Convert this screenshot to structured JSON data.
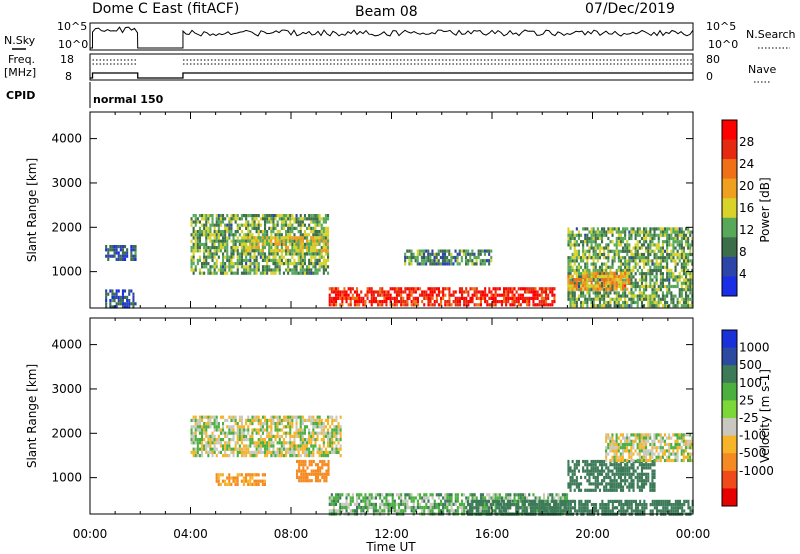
{
  "header": {
    "station": "Dome C East (fitACF)",
    "beam": "Beam 08",
    "date": "07/Dec/2019"
  },
  "summary_panels": {
    "nsky_label": "N.Sky",
    "nsky_ticks": [
      "10^5",
      "10^0"
    ],
    "nsearch_label": "N.Search",
    "nsearch_ticks": [
      "10^5",
      "10^0"
    ],
    "freq_label": "Freq.",
    "freq_unit": "[MHz]",
    "freq_ticks": [
      "18",
      "8"
    ],
    "nave_label": "Nave",
    "nave_ticks": [
      "80",
      "0"
    ],
    "cpid_label": "CPID",
    "cpid_value": "normal 150"
  },
  "colors": {
    "power": [
      "#1a2ee6",
      "#2b45a8",
      "#3c6e4a",
      "#58a85a",
      "#d8d22a",
      "#f0a020",
      "#f07018",
      "#e62a10",
      "#ff0000"
    ],
    "velocity": [
      "#e60000",
      "#f04a1a",
      "#f58a22",
      "#f8b428",
      "#c8c8c0",
      "#7cd838",
      "#4cb040",
      "#3c7a58",
      "#2b4aa0",
      "#1a30d8"
    ]
  },
  "chart_data": [
    {
      "type": "heatmap",
      "title": "Power",
      "xlabel": "Time UT",
      "ylabel": "Slant Range [km]",
      "colorbar_label": "Power [dB]",
      "xlim": [
        0,
        24
      ],
      "ylim": [
        180,
        4600
      ],
      "x_ticks": [
        "00:00",
        "04:00",
        "08:00",
        "12:00",
        "16:00",
        "20:00",
        "00:00"
      ],
      "y_ticks": [
        "1000",
        "2000",
        "3000",
        "4000"
      ],
      "colorbar_ticks": [
        "4",
        "8",
        "12",
        "16",
        "20",
        "24",
        "28"
      ],
      "colorbar_range": [
        0,
        32
      ],
      "regions": [
        {
          "t0": 0.6,
          "t1": 1.8,
          "r0": 1300,
          "r1": 1600,
          "v": 6
        },
        {
          "t0": 0.6,
          "t1": 1.8,
          "r0": 200,
          "r1": 600,
          "v": 6
        },
        {
          "t0": 4.0,
          "t1": 9.5,
          "r0": 1000,
          "r1": 2300,
          "v": 12
        },
        {
          "t0": 6.0,
          "t1": 9.5,
          "r0": 1500,
          "r1": 1800,
          "v": 16
        },
        {
          "t0": 9.5,
          "t1": 18.5,
          "r0": 250,
          "r1": 650,
          "v": 28
        },
        {
          "t0": 12.5,
          "t1": 16.0,
          "r0": 1200,
          "r1": 1500,
          "v": 10
        },
        {
          "t0": 19.0,
          "t1": 24.0,
          "r0": 200,
          "r1": 2000,
          "v": 12
        },
        {
          "t0": 19.0,
          "t1": 21.5,
          "r0": 600,
          "r1": 1000,
          "v": 20
        }
      ]
    },
    {
      "type": "heatmap",
      "title": "Velocity",
      "xlabel": "Time UT",
      "ylabel": "Slant Range [km]",
      "colorbar_label": "Velocity [m s-1]",
      "xlim": [
        0,
        24
      ],
      "ylim": [
        180,
        4600
      ],
      "x_ticks": [
        "00:00",
        "04:00",
        "08:00",
        "12:00",
        "16:00",
        "20:00",
        "00:00"
      ],
      "y_ticks": [
        "1000",
        "2000",
        "3000",
        "4000"
      ],
      "colorbar_ticks": [
        "1000",
        "500",
        "100",
        "25",
        "-25",
        "-100",
        "-500",
        "-1000"
      ],
      "regions": [
        {
          "t0": 4.0,
          "t1": 10.0,
          "r0": 1500,
          "r1": 2400,
          "v": 0
        },
        {
          "t0": 5.0,
          "t1": 7.0,
          "r0": 850,
          "r1": 1100,
          "v": -120
        },
        {
          "t0": 8.2,
          "t1": 9.5,
          "r0": 900,
          "r1": 1400,
          "v": -200
        },
        {
          "t0": 9.5,
          "t1": 19.0,
          "r0": 200,
          "r1": 650,
          "v": 60
        },
        {
          "t0": 15.0,
          "t1": 24.0,
          "r0": 200,
          "r1": 500,
          "v": 200
        },
        {
          "t0": 19.0,
          "t1": 22.5,
          "r0": 700,
          "r1": 1400,
          "v": 300
        },
        {
          "t0": 20.5,
          "t1": 24.0,
          "r0": 1400,
          "r1": 2000,
          "v": 0
        }
      ]
    }
  ]
}
